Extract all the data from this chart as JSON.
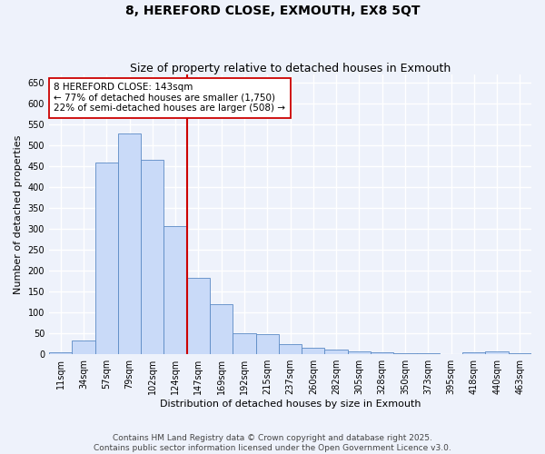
{
  "title": "8, HEREFORD CLOSE, EXMOUTH, EX8 5QT",
  "subtitle": "Size of property relative to detached houses in Exmouth",
  "xlabel": "Distribution of detached houses by size in Exmouth",
  "ylabel": "Number of detached properties",
  "bar_color": "#c9daf8",
  "bar_edge_color": "#5b8ac5",
  "categories": [
    "11sqm",
    "34sqm",
    "57sqm",
    "79sqm",
    "102sqm",
    "124sqm",
    "147sqm",
    "169sqm",
    "192sqm",
    "215sqm",
    "237sqm",
    "260sqm",
    "282sqm",
    "305sqm",
    "328sqm",
    "350sqm",
    "373sqm",
    "395sqm",
    "418sqm",
    "440sqm",
    "463sqm"
  ],
  "values": [
    5,
    33,
    460,
    528,
    465,
    307,
    183,
    120,
    50,
    48,
    25,
    15,
    12,
    8,
    5,
    2,
    2,
    0,
    5,
    7,
    2
  ],
  "ylim": [
    0,
    670
  ],
  "yticks": [
    0,
    50,
    100,
    150,
    200,
    250,
    300,
    350,
    400,
    450,
    500,
    550,
    600,
    650
  ],
  "vline_pos": 6.0,
  "vline_color": "#cc0000",
  "annotation_line1": "8 HEREFORD CLOSE: 143sqm",
  "annotation_line2": "← 77% of detached houses are smaller (1,750)",
  "annotation_line3": "22% of semi-detached houses are larger (508) →",
  "annotation_box_color": "#ffffff",
  "annotation_box_edge": "#cc0000",
  "footer_line1": "Contains HM Land Registry data © Crown copyright and database right 2025.",
  "footer_line2": "Contains public sector information licensed under the Open Government Licence v3.0.",
  "background_color": "#eef2fb",
  "grid_color": "#ffffff",
  "title_fontsize": 10,
  "subtitle_fontsize": 9,
  "axis_label_fontsize": 8,
  "tick_fontsize": 7,
  "annotation_fontsize": 7.5,
  "footer_fontsize": 6.5
}
